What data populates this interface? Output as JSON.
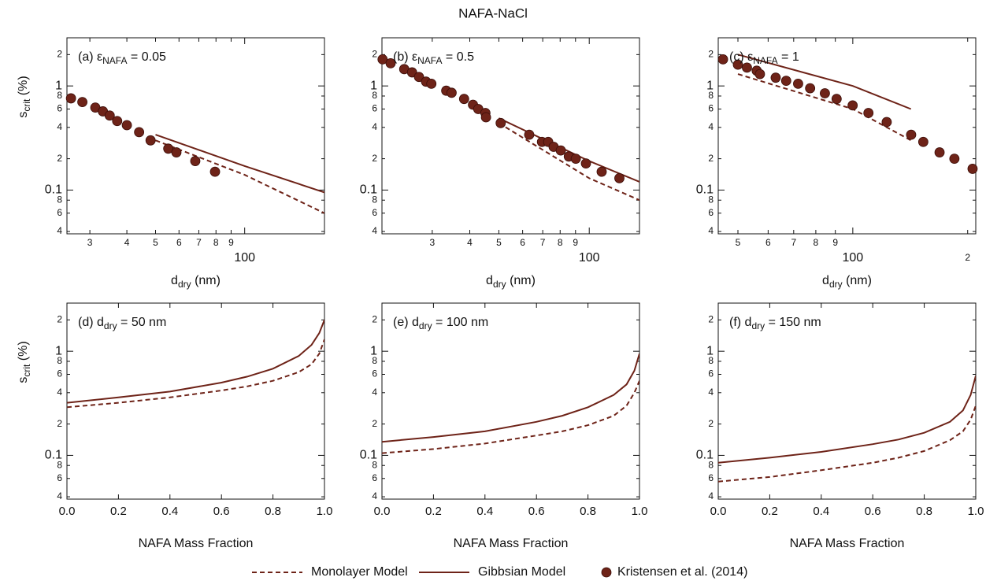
{
  "title": "NAFA-NaCl",
  "legend": [
    {
      "name": "Monolayer Model",
      "line_style": "dashed",
      "color": "#6e2318"
    },
    {
      "name": "Gibbsian Model",
      "line_style": "solid",
      "color": "#6e2318"
    },
    {
      "name": "Kristensen et al. (2014)",
      "line_style": "markers",
      "color": "#6e2318"
    }
  ],
  "chart_data": [
    {
      "type": "line",
      "panel_label": {
        "text": "(a) ε",
        "sub": "NAFA",
        "suffix": " = 0.05"
      },
      "xlabel": {
        "text": "d",
        "sub": "dry",
        "suffix": " (nm)"
      },
      "ylabel": {
        "text": "s",
        "sub": "crit",
        "suffix": " (%)"
      },
      "xscale": "log",
      "yscale": "log",
      "xlim": [
        25.1,
        186
      ],
      "ylim": [
        0.038,
        2.9
      ],
      "xticks": [
        {
          "value": 30,
          "label": "3"
        },
        {
          "value": 40,
          "label": "4"
        },
        {
          "value": 50,
          "label": "5"
        },
        {
          "value": 60,
          "label": "6"
        },
        {
          "value": 70,
          "label": "7"
        },
        {
          "value": 80,
          "label": "8"
        },
        {
          "value": 90,
          "label": "9"
        },
        100
      ],
      "yticks": [
        {
          "value": 0.04,
          "label": "4"
        },
        {
          "value": 0.06,
          "label": "6"
        },
        {
          "value": 0.08,
          "label": "8"
        },
        0.1,
        {
          "value": 0.2,
          "label": "2"
        },
        {
          "value": 0.4,
          "label": "4"
        },
        {
          "value": 0.6,
          "label": "6"
        },
        {
          "value": 0.8,
          "label": "8"
        },
        1,
        2
      ],
      "series": [
        {
          "line_style": "dashed",
          "color": "#6e2318",
          "x": [
            50,
            100,
            186
          ],
          "y": [
            0.3,
            0.14,
            0.06
          ]
        },
        {
          "line_style": "solid",
          "color": "#6e2318",
          "x": [
            50,
            100,
            186
          ],
          "y": [
            0.34,
            0.17,
            0.095
          ]
        },
        {
          "line_style": "markers",
          "color": "#6e2318",
          "x": [
            25.9,
            28.3,
            31.3,
            33.2,
            35.0,
            37.1,
            40.0,
            44.0,
            48.1,
            55.2,
            58.8,
            68.1,
            79.4
          ],
          "y": [
            0.76,
            0.7,
            0.62,
            0.57,
            0.52,
            0.46,
            0.42,
            0.36,
            0.3,
            0.25,
            0.23,
            0.19,
            0.15
          ]
        }
      ]
    },
    {
      "type": "line",
      "panel_label": {
        "text": "(b) ε",
        "sub": "NAFA",
        "suffix": " = 0.5"
      },
      "xlabel": {
        "text": "d",
        "sub": "dry",
        "suffix": " (nm)"
      },
      "xscale": "log",
      "yscale": "log",
      "xlim": [
        20.4,
        147
      ],
      "ylim": [
        0.038,
        2.9
      ],
      "xticks": [
        {
          "value": 30,
          "label": "3"
        },
        {
          "value": 40,
          "label": "4"
        },
        {
          "value": 50,
          "label": "5"
        },
        {
          "value": 60,
          "label": "6"
        },
        {
          "value": 70,
          "label": "7"
        },
        {
          "value": 80,
          "label": "8"
        },
        {
          "value": 90,
          "label": "9"
        },
        100
      ],
      "yticks": [
        {
          "value": 0.04,
          "label": "4"
        },
        {
          "value": 0.06,
          "label": "6"
        },
        {
          "value": 0.08,
          "label": "8"
        },
        0.1,
        {
          "value": 0.2,
          "label": "2"
        },
        {
          "value": 0.4,
          "label": "4"
        },
        {
          "value": 0.6,
          "label": "6"
        },
        {
          "value": 0.8,
          "label": "8"
        },
        1,
        2
      ],
      "series": [
        {
          "line_style": "dashed",
          "color": "#6e2318",
          "x": [
            50,
            100,
            147
          ],
          "y": [
            0.44,
            0.13,
            0.08
          ]
        },
        {
          "line_style": "solid",
          "color": "#6e2318",
          "x": [
            50,
            100,
            147
          ],
          "y": [
            0.49,
            0.19,
            0.12
          ]
        },
        {
          "line_style": "markers",
          "color": "#6e2318",
          "x": [
            20.5,
            21.8,
            24.2,
            25.7,
            27.1,
            28.6,
            29.8,
            33.4,
            34.8,
            38.3,
            41.0,
            42.7,
            45.1,
            45.3,
            50.7,
            63.1,
            69.6,
            73.0,
            76.1,
            80.4,
            85.5,
            90.2,
            97.5,
            110,
            126
          ],
          "y": [
            1.8,
            1.65,
            1.45,
            1.35,
            1.22,
            1.1,
            1.05,
            0.9,
            0.86,
            0.75,
            0.66,
            0.6,
            0.55,
            0.5,
            0.44,
            0.34,
            0.29,
            0.29,
            0.26,
            0.24,
            0.21,
            0.2,
            0.18,
            0.15,
            0.13
          ]
        }
      ]
    },
    {
      "type": "line",
      "panel_label": {
        "text": "(c) ε",
        "sub": "NAFA",
        "suffix": " = 1"
      },
      "xlabel": {
        "text": "d",
        "sub": "dry",
        "suffix": " (nm)"
      },
      "xscale": "log",
      "yscale": "log",
      "xlim": [
        44.4,
        210
      ],
      "ylim": [
        0.038,
        2.9
      ],
      "xticks": [
        {
          "value": 50,
          "label": "5"
        },
        {
          "value": 60,
          "label": "6"
        },
        {
          "value": 70,
          "label": "7"
        },
        {
          "value": 80,
          "label": "8"
        },
        {
          "value": 90,
          "label": "9"
        },
        100,
        {
          "value": 200,
          "label": "2"
        }
      ],
      "yticks": [
        {
          "value": 0.04,
          "label": "4"
        },
        {
          "value": 0.06,
          "label": "6"
        },
        {
          "value": 0.08,
          "label": "8"
        },
        0.1,
        {
          "value": 0.2,
          "label": "2"
        },
        {
          "value": 0.4,
          "label": "4"
        },
        {
          "value": 0.6,
          "label": "6"
        },
        {
          "value": 0.8,
          "label": "8"
        },
        1,
        2
      ],
      "series": [
        {
          "line_style": "dashed",
          "color": "#6e2318",
          "x": [
            50,
            100,
            142
          ],
          "y": [
            1.3,
            0.6,
            0.3
          ]
        },
        {
          "line_style": "solid",
          "color": "#6e2318",
          "x": [
            50,
            100,
            142
          ],
          "y": [
            2.0,
            1.0,
            0.6
          ]
        },
        {
          "line_style": "markers",
          "color": "#6e2318",
          "x": [
            45.7,
            50.0,
            52.8,
            56.0,
            57.1,
            62.8,
            66.9,
            71.9,
            77.3,
            84.5,
            90.7,
            99.9,
            109.9,
            122.7,
            142.2,
            153.0,
            168.8,
            184.6,
            206
          ],
          "y": [
            1.8,
            1.6,
            1.5,
            1.4,
            1.3,
            1.2,
            1.12,
            1.05,
            0.95,
            0.85,
            0.75,
            0.65,
            0.55,
            0.45,
            0.34,
            0.29,
            0.23,
            0.2,
            0.16
          ]
        }
      ]
    },
    {
      "type": "line",
      "panel_label": {
        "text": "(d) d",
        "sub": "dry",
        "suffix": " = 50 nm"
      },
      "xlabel": "NAFA Mass Fraction",
      "ylabel": {
        "text": "s",
        "sub": "crit",
        "suffix": " (%)"
      },
      "xscale": "linear",
      "yscale": "log",
      "xlim": [
        0,
        1
      ],
      "ylim": [
        0.038,
        2.9
      ],
      "xticks": [
        {
          "value": 0,
          "label": "0.0"
        },
        0.2,
        0.4,
        0.6,
        0.8,
        {
          "value": 1,
          "label": "1.0"
        }
      ],
      "yticks": [
        {
          "value": 0.04,
          "label": "4"
        },
        {
          "value": 0.06,
          "label": "6"
        },
        {
          "value": 0.08,
          "label": "8"
        },
        0.1,
        {
          "value": 0.2,
          "label": "2"
        },
        {
          "value": 0.4,
          "label": "4"
        },
        {
          "value": 0.6,
          "label": "6"
        },
        {
          "value": 0.8,
          "label": "8"
        },
        1,
        2
      ],
      "series": [
        {
          "line_style": "dashed",
          "color": "#6e2318",
          "x": [
            0,
            0.2,
            0.4,
            0.6,
            0.7,
            0.8,
            0.9,
            0.95,
            0.98,
            1.0
          ],
          "y": [
            0.29,
            0.32,
            0.36,
            0.42,
            0.46,
            0.52,
            0.63,
            0.75,
            0.95,
            1.3
          ]
        },
        {
          "line_style": "solid",
          "color": "#6e2318",
          "x": [
            0,
            0.2,
            0.4,
            0.6,
            0.7,
            0.8,
            0.9,
            0.95,
            0.98,
            1.0
          ],
          "y": [
            0.32,
            0.36,
            0.41,
            0.5,
            0.57,
            0.68,
            0.9,
            1.15,
            1.5,
            2.0
          ]
        }
      ]
    },
    {
      "type": "line",
      "panel_label": {
        "text": "(e) d",
        "sub": "dry",
        "suffix": " = 100 nm"
      },
      "xlabel": "NAFA Mass Fraction",
      "xscale": "linear",
      "yscale": "log",
      "xlim": [
        0,
        1
      ],
      "ylim": [
        0.038,
        2.9
      ],
      "xticks": [
        {
          "value": 0,
          "label": "0.0"
        },
        0.2,
        0.4,
        0.6,
        0.8,
        {
          "value": 1,
          "label": "1.0"
        }
      ],
      "yticks": [
        {
          "value": 0.04,
          "label": "4"
        },
        {
          "value": 0.06,
          "label": "6"
        },
        {
          "value": 0.08,
          "label": "8"
        },
        0.1,
        {
          "value": 0.2,
          "label": "2"
        },
        {
          "value": 0.4,
          "label": "4"
        },
        {
          "value": 0.6,
          "label": "6"
        },
        {
          "value": 0.8,
          "label": "8"
        },
        1,
        2
      ],
      "series": [
        {
          "line_style": "dashed",
          "color": "#6e2318",
          "x": [
            0,
            0.2,
            0.4,
            0.6,
            0.7,
            0.8,
            0.9,
            0.95,
            0.98,
            1.0
          ],
          "y": [
            0.105,
            0.115,
            0.13,
            0.155,
            0.17,
            0.195,
            0.24,
            0.3,
            0.4,
            0.52
          ]
        },
        {
          "line_style": "solid",
          "color": "#6e2318",
          "x": [
            0,
            0.2,
            0.4,
            0.6,
            0.7,
            0.8,
            0.9,
            0.95,
            0.98,
            1.0
          ],
          "y": [
            0.135,
            0.15,
            0.17,
            0.21,
            0.24,
            0.29,
            0.38,
            0.48,
            0.65,
            0.95
          ]
        }
      ]
    },
    {
      "type": "line",
      "panel_label": {
        "text": "(f) d",
        "sub": "dry",
        "suffix": " = 150 nm"
      },
      "xlabel": "NAFA Mass Fraction",
      "xscale": "linear",
      "yscale": "log",
      "xlim": [
        0,
        1
      ],
      "ylim": [
        0.038,
        2.9
      ],
      "xticks": [
        {
          "value": 0,
          "label": "0.0"
        },
        0.2,
        0.4,
        0.6,
        0.8,
        {
          "value": 1,
          "label": "1.0"
        }
      ],
      "yticks": [
        {
          "value": 0.04,
          "label": "4"
        },
        {
          "value": 0.06,
          "label": "6"
        },
        {
          "value": 0.08,
          "label": "8"
        },
        0.1,
        {
          "value": 0.2,
          "label": "2"
        },
        {
          "value": 0.4,
          "label": "4"
        },
        {
          "value": 0.6,
          "label": "6"
        },
        {
          "value": 0.8,
          "label": "8"
        },
        1,
        2
      ],
      "series": [
        {
          "line_style": "dashed",
          "color": "#6e2318",
          "x": [
            0,
            0.2,
            0.4,
            0.6,
            0.7,
            0.8,
            0.9,
            0.95,
            0.98,
            1.0
          ],
          "y": [
            0.056,
            0.062,
            0.072,
            0.085,
            0.095,
            0.11,
            0.14,
            0.17,
            0.22,
            0.3
          ]
        },
        {
          "line_style": "solid",
          "color": "#6e2318",
          "x": [
            0,
            0.2,
            0.4,
            0.6,
            0.7,
            0.8,
            0.9,
            0.95,
            0.98,
            1.0
          ],
          "y": [
            0.085,
            0.095,
            0.108,
            0.128,
            0.142,
            0.165,
            0.21,
            0.27,
            0.38,
            0.58
          ]
        }
      ]
    }
  ]
}
